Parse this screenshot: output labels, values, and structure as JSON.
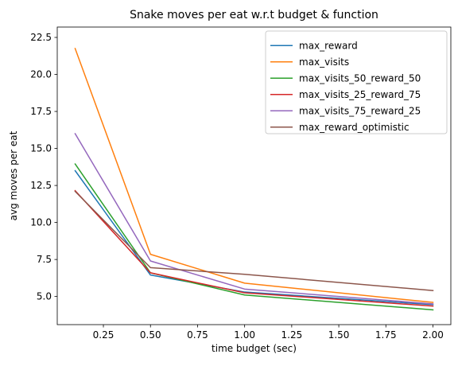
{
  "chart_data": {
    "type": "line",
    "title": "Snake moves per eat w.r.t budget & function",
    "xlabel": "time budget (sec)",
    "ylabel": "avg moves per eat",
    "xlim": [
      0.005,
      2.095
    ],
    "ylim": [
      3.1,
      23.2
    ],
    "xticks": [
      0.25,
      0.5,
      0.75,
      1.0,
      1.25,
      1.5,
      1.75,
      2.0
    ],
    "xtick_labels": [
      "0.25",
      "0.50",
      "0.75",
      "1.00",
      "1.25",
      "1.50",
      "1.75",
      "2.00"
    ],
    "yticks": [
      5.0,
      7.5,
      10.0,
      12.5,
      15.0,
      17.5,
      20.0,
      22.5
    ],
    "ytick_labels": [
      "5.0",
      "7.5",
      "10.0",
      "12.5",
      "15.0",
      "17.5",
      "20.0",
      "22.5"
    ],
    "grid": false,
    "legend_position": "top-right",
    "x": [
      0.1,
      0.5,
      1.0,
      2.0
    ],
    "series": [
      {
        "name": "max_reward",
        "color": "#1f77b4",
        "values": [
          13.5,
          6.45,
          5.3,
          4.45
        ]
      },
      {
        "name": "max_visits",
        "color": "#ff7f0e",
        "values": [
          21.75,
          7.85,
          5.9,
          4.6
        ]
      },
      {
        "name": "max_visits_50_reward_50",
        "color": "#2ca02c",
        "values": [
          13.95,
          6.6,
          5.1,
          4.1
        ]
      },
      {
        "name": "max_visits_25_reward_75",
        "color": "#d62728",
        "values": [
          12.15,
          6.6,
          5.25,
          4.35
        ]
      },
      {
        "name": "max_visits_75_reward_25",
        "color": "#9467bd",
        "values": [
          16.0,
          7.4,
          5.5,
          4.5
        ]
      },
      {
        "name": "max_reward_optimistic",
        "color": "#8c564b",
        "values": [
          12.1,
          6.95,
          6.5,
          5.4
        ]
      }
    ]
  }
}
